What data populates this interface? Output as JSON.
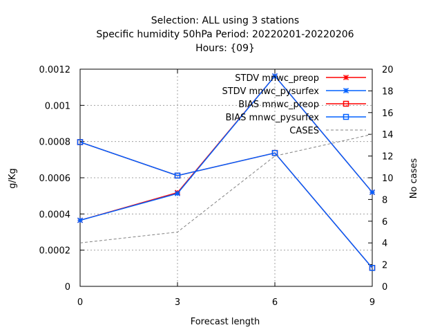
{
  "chart_data": {
    "type": "line",
    "title_lines": [
      "Selection: ALL using     3 stations",
      "Specific humidity 50hPa   Period: 20220201-20220206",
      "Hours: {09}"
    ],
    "xlabel": "Forecast length",
    "ylabel": "g/Kg",
    "y2label": "No cases",
    "x_ticks": [
      0,
      3,
      6,
      9
    ],
    "y_ticks": [
      "0",
      "0.0002",
      "0.0004",
      "0.0006",
      "0.0008",
      "0.001",
      "0.0012"
    ],
    "y2_ticks": [
      "0",
      "2",
      "4",
      "6",
      "8",
      "10",
      "12",
      "14",
      "16",
      "18",
      "20"
    ],
    "xlim": [
      0,
      9
    ],
    "ylim": [
      0,
      0.0012
    ],
    "y2lim": [
      0,
      20
    ],
    "grid": true,
    "legend_position": "top-right",
    "series": [
      {
        "name": "STDV mnwc_preop",
        "axis": "y",
        "color": "#ff0000",
        "marker": "star",
        "dash": "solid",
        "x": [
          0,
          3,
          6,
          9
        ],
        "y": [
          0.000365,
          0.000518,
          0.001162,
          0.00052
        ]
      },
      {
        "name": "STDV mnwc_pysurfex",
        "axis": "y",
        "color": "#0060ff",
        "marker": "star",
        "dash": "solid",
        "x": [
          0,
          3,
          6,
          9
        ],
        "y": [
          0.000365,
          0.000513,
          0.001162,
          0.00052
        ]
      },
      {
        "name": "BIAS mnwc_preop",
        "axis": "y",
        "color": "#ff0000",
        "marker": "square",
        "dash": "solid",
        "x": [
          0,
          3,
          6,
          9
        ],
        "y": [
          0.000797,
          0.000612,
          0.000737,
          0.000102
        ]
      },
      {
        "name": "BIAS mnwc_pysurfex",
        "axis": "y",
        "color": "#0060ff",
        "marker": "square",
        "dash": "solid",
        "x": [
          0,
          3,
          6,
          9
        ],
        "y": [
          0.000797,
          0.000612,
          0.000737,
          0.000102
        ]
      },
      {
        "name": "CASES",
        "axis": "y2",
        "color": "#808080",
        "marker": "none",
        "dash": "dashed",
        "x": [
          0,
          3,
          6,
          9
        ],
        "y": [
          4,
          5,
          12,
          14
        ]
      }
    ]
  }
}
